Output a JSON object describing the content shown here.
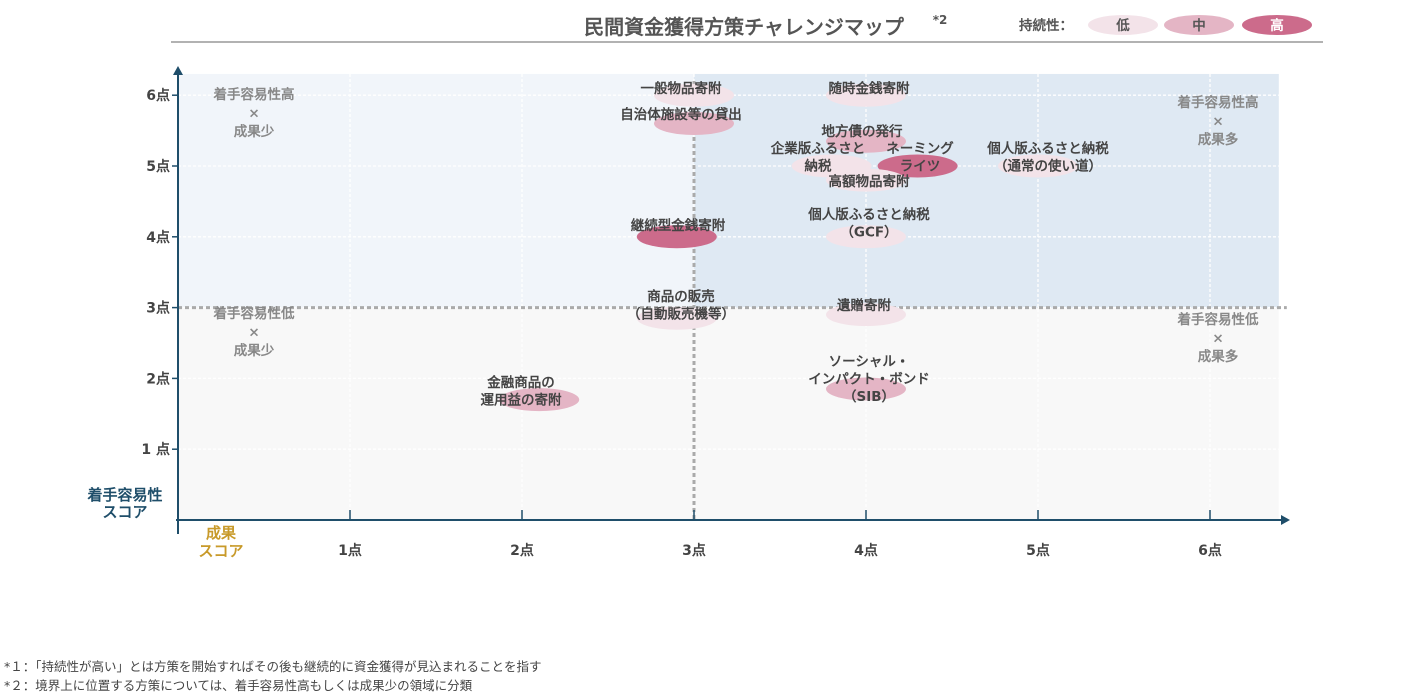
{
  "title": "民間資金獲得方策チャレンジマップ",
  "title_superscript": "*2",
  "legend": {
    "label": "持続性：",
    "levels": [
      {
        "label": "低",
        "color": "#f3e3e9"
      },
      {
        "label": "中",
        "color": "#e4b5c5"
      },
      {
        "label": "高",
        "color": "#cc6b8b"
      }
    ]
  },
  "axes": {
    "y_title_lines": [
      "着手容易性",
      "スコア"
    ],
    "x_title_lines": [
      "成果",
      "スコア"
    ],
    "y_ticks": [
      "1 点",
      "2点",
      "3点",
      "4点",
      "5点",
      "6点"
    ],
    "x_ticks": [
      "1点",
      "2点",
      "3点",
      "4点",
      "5点",
      "6点"
    ]
  },
  "quadrant_labels": [
    {
      "lines": [
        "着手容易性高",
        "×",
        "成果少"
      ]
    },
    {
      "lines": [
        "着手容易性高",
        "×",
        "成果多"
      ]
    },
    {
      "lines": [
        "着手容易性低",
        "×",
        "成果少"
      ]
    },
    {
      "lines": [
        "着手容易性低",
        "×",
        "成果多"
      ]
    }
  ],
  "footnotes": [
    "*１：「持続性が高い」とは方策を開始すればその後も継続的に資金獲得が見込まれることを指す",
    "*２：境界上に位置する方策については、着手容易性高もしくは成果少の領域に分類"
  ],
  "chart_data": {
    "type": "scatter",
    "title": "民間資金獲得方策チャレンジマップ",
    "xlabel": "成果スコア",
    "ylabel": "着手容易性スコア",
    "xlim": [
      0,
      6.4
    ],
    "ylim": [
      0,
      6.3
    ],
    "divider": {
      "x": 3,
      "y": 3
    },
    "colors": {
      "低": "#f3e3e9",
      "中": "#e4b5c5",
      "高": "#cc6b8b"
    },
    "points": [
      {
        "label": "一般物品寄附",
        "x": 3,
        "y": 6,
        "sustainability": "低"
      },
      {
        "label": "随時金銭寄附",
        "x": 4,
        "y": 6,
        "sustainability": "低"
      },
      {
        "label": "自治体施設等の貸出",
        "x": 3,
        "y": 5.6,
        "sustainability": "中"
      },
      {
        "label": "地方債の発行",
        "x": 4,
        "y": 5.35,
        "sustainability": "中"
      },
      {
        "label": "企業版ふるさと納税",
        "x": 3.8,
        "y": 5,
        "sustainability": "低"
      },
      {
        "label": "ネーミングライツ",
        "x": 4.3,
        "y": 5,
        "sustainability": "高"
      },
      {
        "label": "高額物品寄附",
        "x": 4,
        "y": 4.8,
        "sustainability": "低"
      },
      {
        "label": "個人版ふるさと納税（通常の使い道）",
        "x": 5,
        "y": 5,
        "sustainability": "低"
      },
      {
        "label": "継続型金銭寄附",
        "x": 2.9,
        "y": 4,
        "sustainability": "高"
      },
      {
        "label": "個人版ふるさと納税（GCF）",
        "x": 4,
        "y": 4,
        "sustainability": "低"
      },
      {
        "label": "商品の販売（自動販売機等）",
        "x": 2.9,
        "y": 2.85,
        "sustainability": "低"
      },
      {
        "label": "遺贈寄附",
        "x": 4,
        "y": 2.9,
        "sustainability": "低"
      },
      {
        "label": "ソーシャル・インパクト・ボンド（SIB）",
        "x": 4,
        "y": 1.85,
        "sustainability": "中"
      },
      {
        "label": "金融商品の運用益の寄附",
        "x": 2.1,
        "y": 1.7,
        "sustainability": "中"
      }
    ],
    "point_text": [
      {
        "lines": [
          "一般物品寄附"
        ]
      },
      {
        "lines": [
          "随時金銭寄附"
        ]
      },
      {
        "lines": [
          "自治体施設等の貸出"
        ]
      },
      {
        "lines": [
          "地方債の発行"
        ]
      },
      {
        "lines": [
          "企業版ふるさと",
          "納税"
        ]
      },
      {
        "lines": [
          "ネーミング",
          "ライツ"
        ]
      },
      {
        "lines": [
          "高額物品寄附"
        ]
      },
      {
        "lines": [
          "個人版ふるさと納税",
          "（通常の使い道）"
        ]
      },
      {
        "lines": [
          "継続型金銭寄附"
        ]
      },
      {
        "lines": [
          "個人版ふるさと納税",
          "（GCF）"
        ]
      },
      {
        "lines": [
          "商品の販売",
          "（自動販売機等）"
        ]
      },
      {
        "lines": [
          "遺贈寄附"
        ]
      },
      {
        "lines": [
          "ソーシャル・",
          "インパクト・ボンド",
          "（SIB）"
        ]
      },
      {
        "lines": [
          "金融商品の",
          "運用益の寄附"
        ]
      }
    ]
  }
}
